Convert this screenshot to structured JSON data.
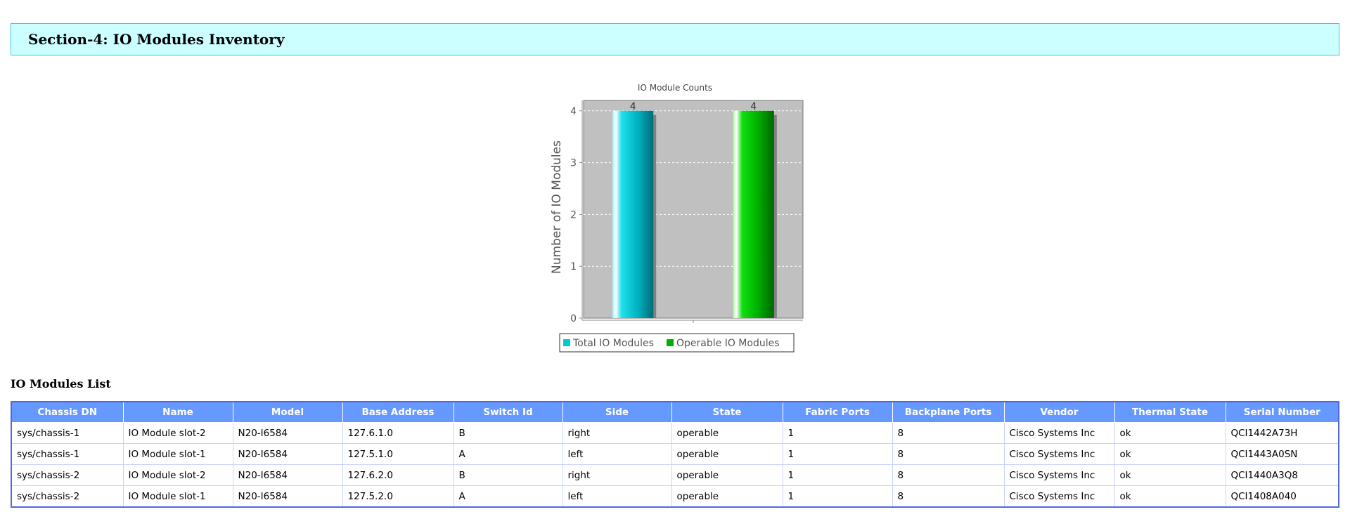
{
  "section": {
    "title": "Section-4: IO Modules Inventory"
  },
  "chart_data": {
    "type": "bar",
    "title": "IO Module Counts",
    "xlabel": "",
    "ylabel": "Number of IO Modules",
    "categories": [
      ""
    ],
    "series": [
      {
        "name": "Total IO Modules",
        "values": [
          4
        ],
        "color": "#00c8d0"
      },
      {
        "name": "Operable IO Modules",
        "values": [
          4
        ],
        "color": "#00b000"
      }
    ],
    "data_labels": [
      "4",
      "4"
    ],
    "yticks": [
      "0",
      "1",
      "2",
      "3",
      "4"
    ],
    "ylim": [
      0,
      4.2
    ],
    "grid": true,
    "legend": "bottom",
    "plot_background": "#c0c0c0"
  },
  "list": {
    "title": "IO Modules List",
    "columns": [
      "Chassis DN",
      "Name",
      "Model",
      "Base Address",
      "Switch Id",
      "Side",
      "State",
      "Fabric Ports",
      "Backplane Ports",
      "Vendor",
      "Thermal State",
      "Serial Number"
    ],
    "rows": [
      [
        "sys/chassis-1",
        "IO Module slot-2",
        "N20-I6584",
        "127.6.1.0",
        "B",
        "right",
        "operable",
        "1",
        "8",
        "Cisco Systems Inc",
        "ok",
        "QCI1442A73H"
      ],
      [
        "sys/chassis-1",
        "IO Module slot-1",
        "N20-I6584",
        "127.5.1.0",
        "A",
        "left",
        "operable",
        "1",
        "8",
        "Cisco Systems Inc",
        "ok",
        "QCI1443A0SN"
      ],
      [
        "sys/chassis-2",
        "IO Module slot-2",
        "N20-I6584",
        "127.6.2.0",
        "B",
        "right",
        "operable",
        "1",
        "8",
        "Cisco Systems Inc",
        "ok",
        "QCI1440A3Q8"
      ],
      [
        "sys/chassis-2",
        "IO Module slot-1",
        "N20-I6584",
        "127.5.2.0",
        "A",
        "left",
        "operable",
        "1",
        "8",
        "Cisco Systems Inc",
        "ok",
        "QCI1408A040"
      ]
    ]
  }
}
